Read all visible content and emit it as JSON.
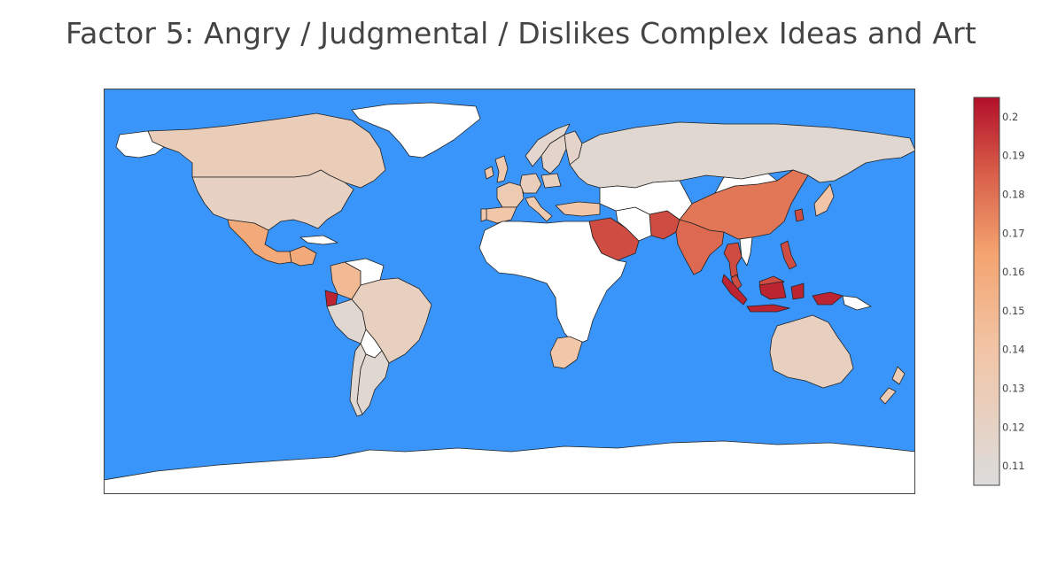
{
  "title": "Factor 5: Angry / Judgmental / Dislikes Complex Ideas and Art",
  "colors": {
    "ocean": "#3a95fa",
    "land_nodata": "#ffffff",
    "border": "#222222"
  },
  "colorscale": {
    "min": 0.105,
    "max": 0.205,
    "stops": [
      [
        0.0,
        "#dcdcdc"
      ],
      [
        0.35,
        "#f2c5a6"
      ],
      [
        0.6,
        "#f3a36f"
      ],
      [
        0.8,
        "#d9604a"
      ],
      [
        1.0,
        "#b2102a"
      ]
    ],
    "ticks": [
      "0.2",
      "0.19",
      "0.18",
      "0.17",
      "0.16",
      "0.15",
      "0.14",
      "0.13",
      "0.12",
      "0.11"
    ],
    "tick_values": [
      0.2,
      0.19,
      0.18,
      0.17,
      0.16,
      0.15,
      0.14,
      0.13,
      0.12,
      0.11
    ]
  },
  "chart_data": {
    "type": "choropleth",
    "title": "Factor 5: Angry / Judgmental / Dislikes Complex Ideas and Art",
    "regions": [
      {
        "name": "Canada",
        "value": 0.128
      },
      {
        "name": "United States",
        "value": 0.122
      },
      {
        "name": "Mexico",
        "value": 0.16
      },
      {
        "name": "Guatemala",
        "value": 0.16
      },
      {
        "name": "Colombia",
        "value": 0.148
      },
      {
        "name": "Ecuador",
        "value": 0.2
      },
      {
        "name": "Peru",
        "value": 0.112
      },
      {
        "name": "Brazil",
        "value": 0.123
      },
      {
        "name": "Argentina",
        "value": 0.112
      },
      {
        "name": "Chile",
        "value": 0.112
      },
      {
        "name": "United Kingdom",
        "value": 0.133
      },
      {
        "name": "Ireland",
        "value": 0.135
      },
      {
        "name": "France",
        "value": 0.132
      },
      {
        "name": "Spain",
        "value": 0.138
      },
      {
        "name": "Portugal",
        "value": 0.135
      },
      {
        "name": "Germany",
        "value": 0.126
      },
      {
        "name": "Italy",
        "value": 0.133
      },
      {
        "name": "Norway",
        "value": 0.114
      },
      {
        "name": "Sweden",
        "value": 0.118
      },
      {
        "name": "Finland",
        "value": 0.118
      },
      {
        "name": "Poland",
        "value": 0.124
      },
      {
        "name": "Turkey",
        "value": 0.138
      },
      {
        "name": "Russia",
        "value": 0.112
      },
      {
        "name": "Saudi Arabia",
        "value": 0.19
      },
      {
        "name": "Pakistan",
        "value": 0.19
      },
      {
        "name": "India",
        "value": 0.182
      },
      {
        "name": "China",
        "value": 0.178
      },
      {
        "name": "South Korea",
        "value": 0.19
      },
      {
        "name": "Japan",
        "value": 0.14
      },
      {
        "name": "Thailand",
        "value": 0.19
      },
      {
        "name": "Philippines",
        "value": 0.19
      },
      {
        "name": "Malaysia",
        "value": 0.19
      },
      {
        "name": "Indonesia",
        "value": 0.2
      },
      {
        "name": "Australia",
        "value": 0.123
      },
      {
        "name": "New Zealand",
        "value": 0.13
      },
      {
        "name": "South Africa",
        "value": 0.138
      }
    ]
  }
}
